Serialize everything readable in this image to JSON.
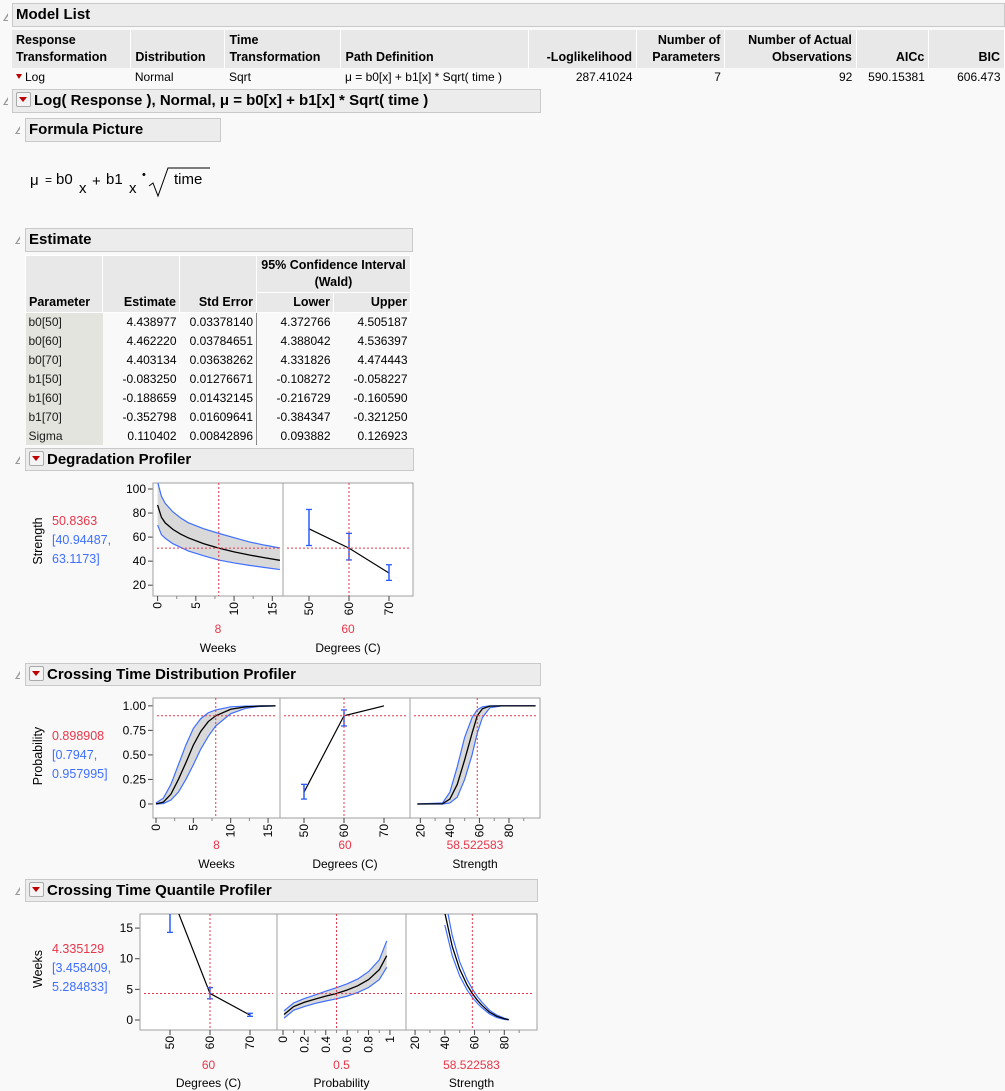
{
  "model_list": {
    "title": "Model List",
    "columns": [
      "Response\nTransformation",
      "Distribution",
      "Time\nTransformation",
      "Path Definition",
      "-Loglikelihood",
      "Number of\nParameters",
      "Number of Actual\nObservations",
      "AICc",
      "BIC"
    ],
    "row": {
      "response": "Log",
      "distribution": "Normal",
      "time": "Sqrt",
      "path": "μ = b0[x] + b1[x] * Sqrt( time )",
      "loglik": "287.41024",
      "nparams": "7",
      "nobs": "92",
      "aicc": "590.15381",
      "bic": "606.473"
    }
  },
  "model_title": "Log( Response ), Normal, μ = b0[x] + b1[x] * Sqrt( time )",
  "formula": {
    "title": "Formula Picture",
    "mu": "μ",
    "eq": "=",
    "b0": "b0",
    "sub": "x",
    "plus": "+",
    "b1": "b1",
    "dot": "•",
    "time": "time"
  },
  "estimate": {
    "title": "Estimate",
    "ci_header": "95% Confidence Interval (Wald)",
    "columns": [
      "Parameter",
      "Estimate",
      "Std Error",
      "Lower",
      "Upper"
    ],
    "rows": [
      [
        "b0[50]",
        "4.438977",
        "0.03378140",
        "4.372766",
        "4.505187"
      ],
      [
        "b0[60]",
        "4.462220",
        "0.03784651",
        "4.388042",
        "4.536397"
      ],
      [
        "b0[70]",
        "4.403134",
        "0.03638262",
        "4.331826",
        "4.474443"
      ],
      [
        "b1[50]",
        "-0.083250",
        "0.01276671",
        "-0.108272",
        "-0.058227"
      ],
      [
        "b1[60]",
        "-0.188659",
        "0.01432145",
        "-0.216729",
        "-0.160590"
      ],
      [
        "b1[70]",
        "-0.352798",
        "0.01609641",
        "-0.384347",
        "-0.321250"
      ],
      [
        "Sigma",
        "0.110402",
        "0.00842896",
        "0.093882",
        "0.126923"
      ]
    ]
  },
  "colors": {
    "crosshair": "#e8364a",
    "band_fill": "#d9d9d9",
    "band_edge": "#3f6fff",
    "errorbar": "#2a5cff",
    "curve": "#000000"
  },
  "chart_data": [
    {
      "title": "Degradation Profiler",
      "type": "line",
      "ylabel": "Strength",
      "yvalue": "50.8363",
      "yci": [
        "[40.94487,",
        "63.1173]"
      ],
      "ylim": [
        11,
        105
      ],
      "yticks": [
        20,
        40,
        60,
        80,
        100
      ],
      "panels": [
        {
          "xlabel": "Weeks",
          "xvalue": "8",
          "xcross": 8,
          "ycross": 50.8363,
          "xlim": [
            -0.6,
            16.4
          ],
          "xticks": [
            0,
            5,
            10,
            15
          ],
          "minor": [
            2.5,
            7.5,
            12.5
          ],
          "curve": {
            "x": [
              0,
              0.5,
              1,
              2,
              3,
              4,
              6,
              8,
              10,
              12,
              14,
              16
            ],
            "y": [
              86.7,
              76.5,
              71.8,
              66.4,
              62.5,
              59.4,
              54.6,
              50.84,
              47.7,
              45.1,
              42.8,
              40.7
            ],
            "lower": [
              70,
              62,
              59,
              54.5,
              51.5,
              48.5,
              44.5,
              40.9,
              38.5,
              36.5,
              34.7,
              33
            ],
            "upper": [
              106,
              94,
              88,
              81,
              76,
              72,
              67,
              63.1,
              59.5,
              56,
              53.3,
              51
            ],
            "fill": true
          }
        },
        {
          "xlabel": "Degrees (C)",
          "xvalue": "60",
          "xcross": 60,
          "ycross": 50.8363,
          "xlim": [
            43.5,
            76
          ],
          "xticks": [
            50,
            60,
            70
          ],
          "minor": [],
          "points": {
            "x": [
              50,
              60,
              70
            ],
            "y": [
              66.9,
              50.84,
              30.1
            ],
            "lower": [
              53,
              41,
              24
            ],
            "upper": [
              83,
              63.1,
              37
            ]
          }
        }
      ]
    },
    {
      "title": "Crossing Time Distribution Profiler",
      "type": "line",
      "ylabel": "Probability",
      "yvalue": "0.898908",
      "yci": [
        "[0.7947,",
        "0.957995]"
      ],
      "ylim": [
        -0.143,
        1.08
      ],
      "yticks": [
        0,
        0.25,
        0.5,
        0.75,
        1
      ],
      "yticklabels": [
        "0",
        "0.25",
        "0.50",
        "0.75",
        "1.00"
      ],
      "panels": [
        {
          "xlabel": "Weeks",
          "xvalue": "8",
          "xcross": 8,
          "ycross": 0.898908,
          "xlim": [
            -0.4,
            16.6
          ],
          "xticks": [
            0,
            5,
            10,
            15
          ],
          "minor": [
            2.5,
            7.5,
            12.5
          ],
          "curve": {
            "x": [
              0,
              1,
              2,
              3,
              4,
              5,
              6,
              7,
              8,
              10,
              12,
              14,
              16
            ],
            "y": [
              0,
              0.02,
              0.1,
              0.25,
              0.42,
              0.6,
              0.74,
              0.84,
              0.899,
              0.965,
              0.99,
              0.998,
              1
            ],
            "lower": [
              0,
              0.005,
              0.04,
              0.12,
              0.25,
              0.4,
              0.56,
              0.69,
              0.795,
              0.92,
              0.975,
              0.995,
              1
            ],
            "upper": [
              0.01,
              0.06,
              0.2,
              0.4,
              0.6,
              0.77,
              0.87,
              0.93,
              0.958,
              0.99,
              0.998,
              1,
              1
            ],
            "fill": true
          }
        },
        {
          "xlabel": "Degrees (C)",
          "xvalue": "60",
          "xcross": 60,
          "ycross": 0.898908,
          "xlim": [
            44,
            76.5
          ],
          "xticks": [
            50,
            60,
            70
          ],
          "minor": [],
          "points": {
            "x": [
              50,
              60,
              70
            ],
            "y": [
              0.12,
              0.899,
              1.0
            ],
            "lower": [
              0.05,
              0.795,
              null
            ],
            "upper": [
              0.2,
              0.958,
              null
            ]
          }
        },
        {
          "xlabel": "Strength",
          "xvalue": "58.522583",
          "xcross": 58.522583,
          "ycross": 0.898908,
          "xlim": [
            13,
            101
          ],
          "xticks": [
            20,
            40,
            60,
            80
          ],
          "minor": [
            30,
            50,
            70,
            90
          ],
          "curve": {
            "x": [
              18,
              35,
              40,
              45,
              50,
              55,
              58.5,
              62,
              67,
              75,
              98
            ],
            "y": [
              0,
              0.002,
              0.05,
              0.2,
              0.45,
              0.72,
              0.899,
              0.97,
              0.997,
              1,
              1
            ],
            "lower": [
              0,
              0,
              0.01,
              0.07,
              0.25,
              0.5,
              0.72,
              0.88,
              0.98,
              1,
              1
            ],
            "upper": [
              0,
              0.01,
              0.12,
              0.38,
              0.68,
              0.88,
              0.96,
              0.99,
              1,
              1,
              1
            ],
            "fill": true
          }
        }
      ]
    },
    {
      "title": "Crossing Time Quantile Profiler",
      "type": "line",
      "ylabel": "Weeks",
      "yvalue": "4.335129",
      "yci": [
        "[3.458409,",
        "5.284833]"
      ],
      "ylim": [
        -1.63,
        17.3
      ],
      "yticks": [
        0,
        5,
        10,
        15
      ],
      "panels": [
        {
          "xlabel": "Degrees (C)",
          "xvalue": "60",
          "xcross": 60,
          "ycross": 4.335129,
          "xlim": [
            42.5,
            76.75
          ],
          "xticks": [
            50,
            60,
            70
          ],
          "minor": [],
          "points": {
            "x": [
              50,
              60,
              70
            ],
            "y": [
              21,
              4.335,
              0.8
            ],
            "lower": [
              14.3,
              3.458,
              0.6
            ],
            "upper": [
              28,
              5.285,
              1.1
            ]
          }
        },
        {
          "xlabel": "Probability",
          "xvalue": "0.5",
          "xcross": 0.5,
          "ycross": 4.335129,
          "xlim": [
            -0.056,
            1.15
          ],
          "xticks": [
            0,
            0.2,
            0.4,
            0.6,
            0.8,
            1
          ],
          "minor": [
            0.1,
            0.3,
            0.5,
            0.7,
            0.9
          ],
          "curve": {
            "x": [
              0.01,
              0.1,
              0.2,
              0.3,
              0.4,
              0.5,
              0.6,
              0.7,
              0.8,
              0.9,
              0.97
            ],
            "y": [
              0.9,
              2.2,
              2.9,
              3.4,
              3.9,
              4.335,
              4.9,
              5.6,
              6.6,
              8.2,
              10.5
            ],
            "lower": [
              0.3,
              1.6,
              2.2,
              2.7,
              3.1,
              3.46,
              3.9,
              4.5,
              5.3,
              6.6,
              8.6
            ],
            "upper": [
              1.5,
              2.8,
              3.5,
              4.1,
              4.7,
              5.28,
              5.9,
              6.7,
              7.9,
              9.8,
              12.9
            ],
            "fill": true
          }
        },
        {
          "xlabel": "Strength",
          "xvalue": "58.522583",
          "xcross": 58.522583,
          "ycross": 4.335129,
          "xlim": [
            13.9,
            102
          ],
          "xticks": [
            20,
            40,
            60,
            80
          ],
          "minor": [
            30,
            50,
            70,
            90
          ],
          "curve": {
            "x": [
              40,
              45,
              50,
              55,
              58.5,
              62,
              65,
              70,
              75,
              80,
              83
            ],
            "y": [
              17.5,
              12,
              8.3,
              5.7,
              4.335,
              3.2,
              2.4,
              1.3,
              0.6,
              0.2,
              0.05
            ],
            "lower": [
              15.5,
              10.5,
              7.2,
              4.9,
              3.7,
              2.7,
              2,
              1,
              0.4,
              0.1,
              0.02
            ],
            "upper": [
              20,
              13.8,
              9.5,
              6.6,
              5.05,
              3.8,
              2.9,
              1.6,
              0.8,
              0.3,
              0.1
            ],
            "fill": false
          }
        }
      ]
    }
  ]
}
